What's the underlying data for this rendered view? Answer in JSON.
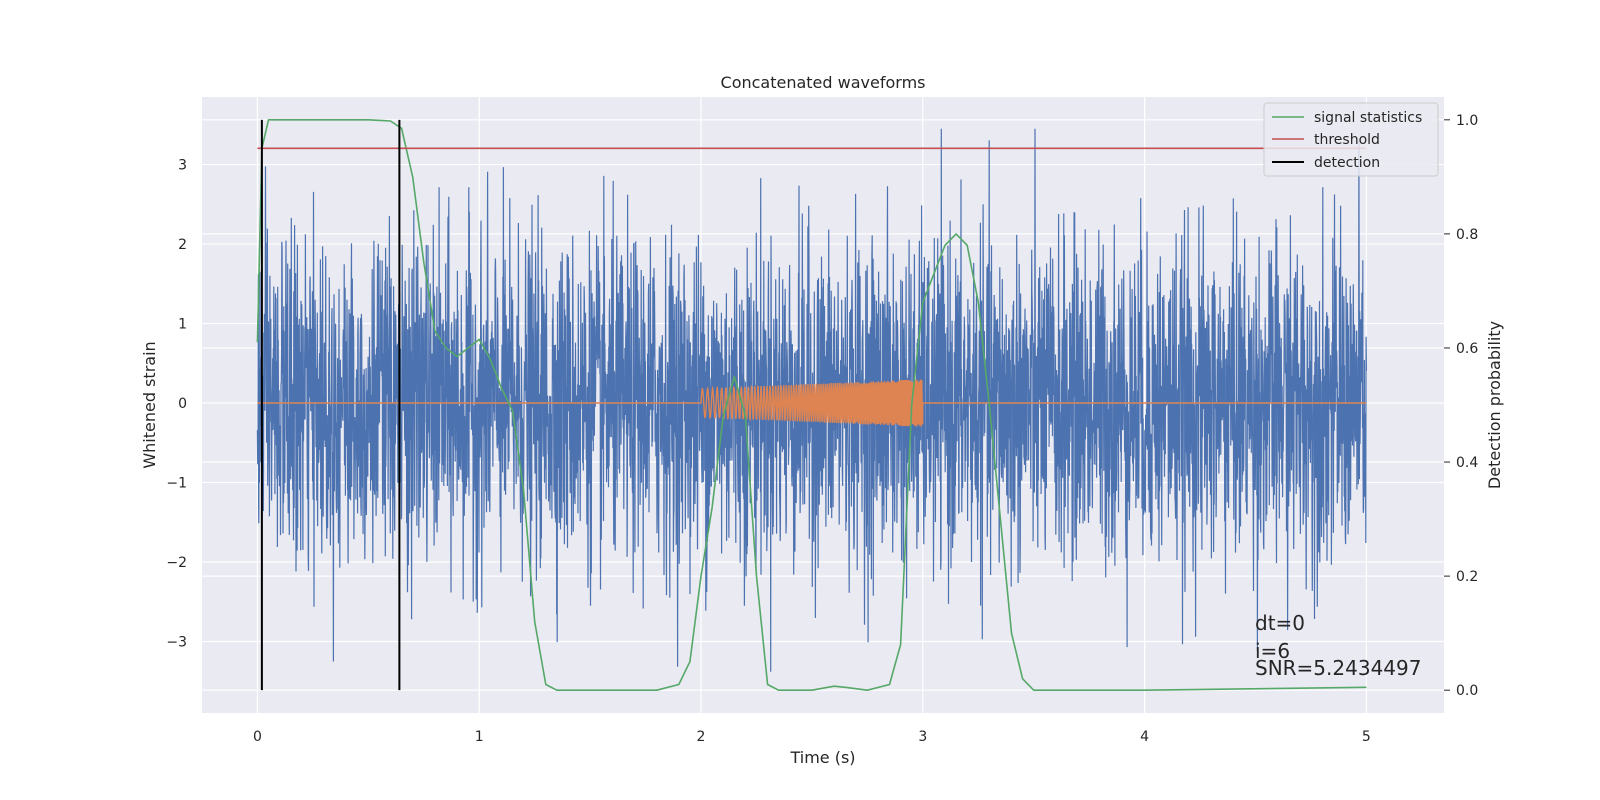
{
  "chart_data": {
    "type": "line",
    "title": "Concatenated waveforms",
    "xlabel": "Time (s)",
    "ylabel_left": "Whitened strain",
    "ylabel_right": "Detection probability",
    "xlim": [
      -0.25,
      5.35
    ],
    "ylim_left": [
      -3.9,
      3.85
    ],
    "ylim_right": [
      -0.04,
      1.04
    ],
    "x_ticks": [
      0,
      1,
      2,
      3,
      4,
      5
    ],
    "y_ticks_left": [
      -3,
      -2,
      -1,
      0,
      1,
      2,
      3
    ],
    "y_ticks_right": [
      0.0,
      0.2,
      0.4,
      0.6,
      0.8,
      1.0
    ],
    "grid": true,
    "legend_position": "top-right",
    "series": [
      {
        "name": "",
        "axis": "left",
        "color": "#4c72b0",
        "kind": "noise",
        "x_range": [
          0,
          5
        ],
        "sample_count": 4000,
        "amplitude_typical": 1.0,
        "min": -3.55,
        "max": 3.45
      },
      {
        "name": "",
        "axis": "left",
        "color": "#dd8452",
        "kind": "chirp",
        "flat_value": 0,
        "chirp_x_range": [
          2.0,
          3.0
        ],
        "chirp_amplitude_start": 0.18,
        "chirp_amplitude_end": 0.3
      },
      {
        "name": "signal statistics",
        "axis": "right",
        "color": "#55a868",
        "x": [
          0.0,
          0.02,
          0.05,
          0.1,
          0.3,
          0.5,
          0.6,
          0.65,
          0.7,
          0.75,
          0.8,
          0.85,
          0.9,
          0.95,
          1.0,
          1.05,
          1.1,
          1.15,
          1.2,
          1.25,
          1.3,
          1.35,
          1.5,
          1.8,
          1.9,
          1.95,
          2.0,
          2.05,
          2.1,
          2.15,
          2.2,
          2.25,
          2.3,
          2.35,
          2.5,
          2.6,
          2.65,
          2.75,
          2.85,
          2.9,
          2.95,
          3.0,
          3.05,
          3.1,
          3.15,
          3.2,
          3.25,
          3.3,
          3.35,
          3.4,
          3.45,
          3.5,
          4.0,
          5.0
        ],
        "values": [
          0.61,
          0.95,
          1.0,
          1.0,
          1.0,
          1.0,
          0.998,
          0.985,
          0.9,
          0.75,
          0.63,
          0.6,
          0.585,
          0.6,
          0.615,
          0.58,
          0.53,
          0.49,
          0.35,
          0.12,
          0.01,
          0.0,
          0.0,
          0.0,
          0.01,
          0.05,
          0.2,
          0.32,
          0.48,
          0.55,
          0.48,
          0.2,
          0.01,
          0.0,
          0.0,
          0.007,
          0.005,
          0.0,
          0.01,
          0.08,
          0.5,
          0.68,
          0.73,
          0.78,
          0.8,
          0.78,
          0.68,
          0.5,
          0.3,
          0.1,
          0.02,
          0.0,
          0.0,
          0.005
        ]
      },
      {
        "name": "threshold",
        "axis": "right",
        "color": "#c44e52",
        "x": [
          0,
          5
        ],
        "values": [
          0.95,
          0.95
        ]
      },
      {
        "name": "detection",
        "axis": "right",
        "color": "#000000",
        "x": [
          0.02,
          0.64
        ],
        "kind": "vertical-lines",
        "y_range": [
          0,
          1
        ]
      }
    ],
    "legend": [
      "signal statistics",
      "threshold",
      "detection"
    ],
    "annotations": [
      "dt=0",
      "i=6",
      "SNR=5.2434497"
    ]
  }
}
